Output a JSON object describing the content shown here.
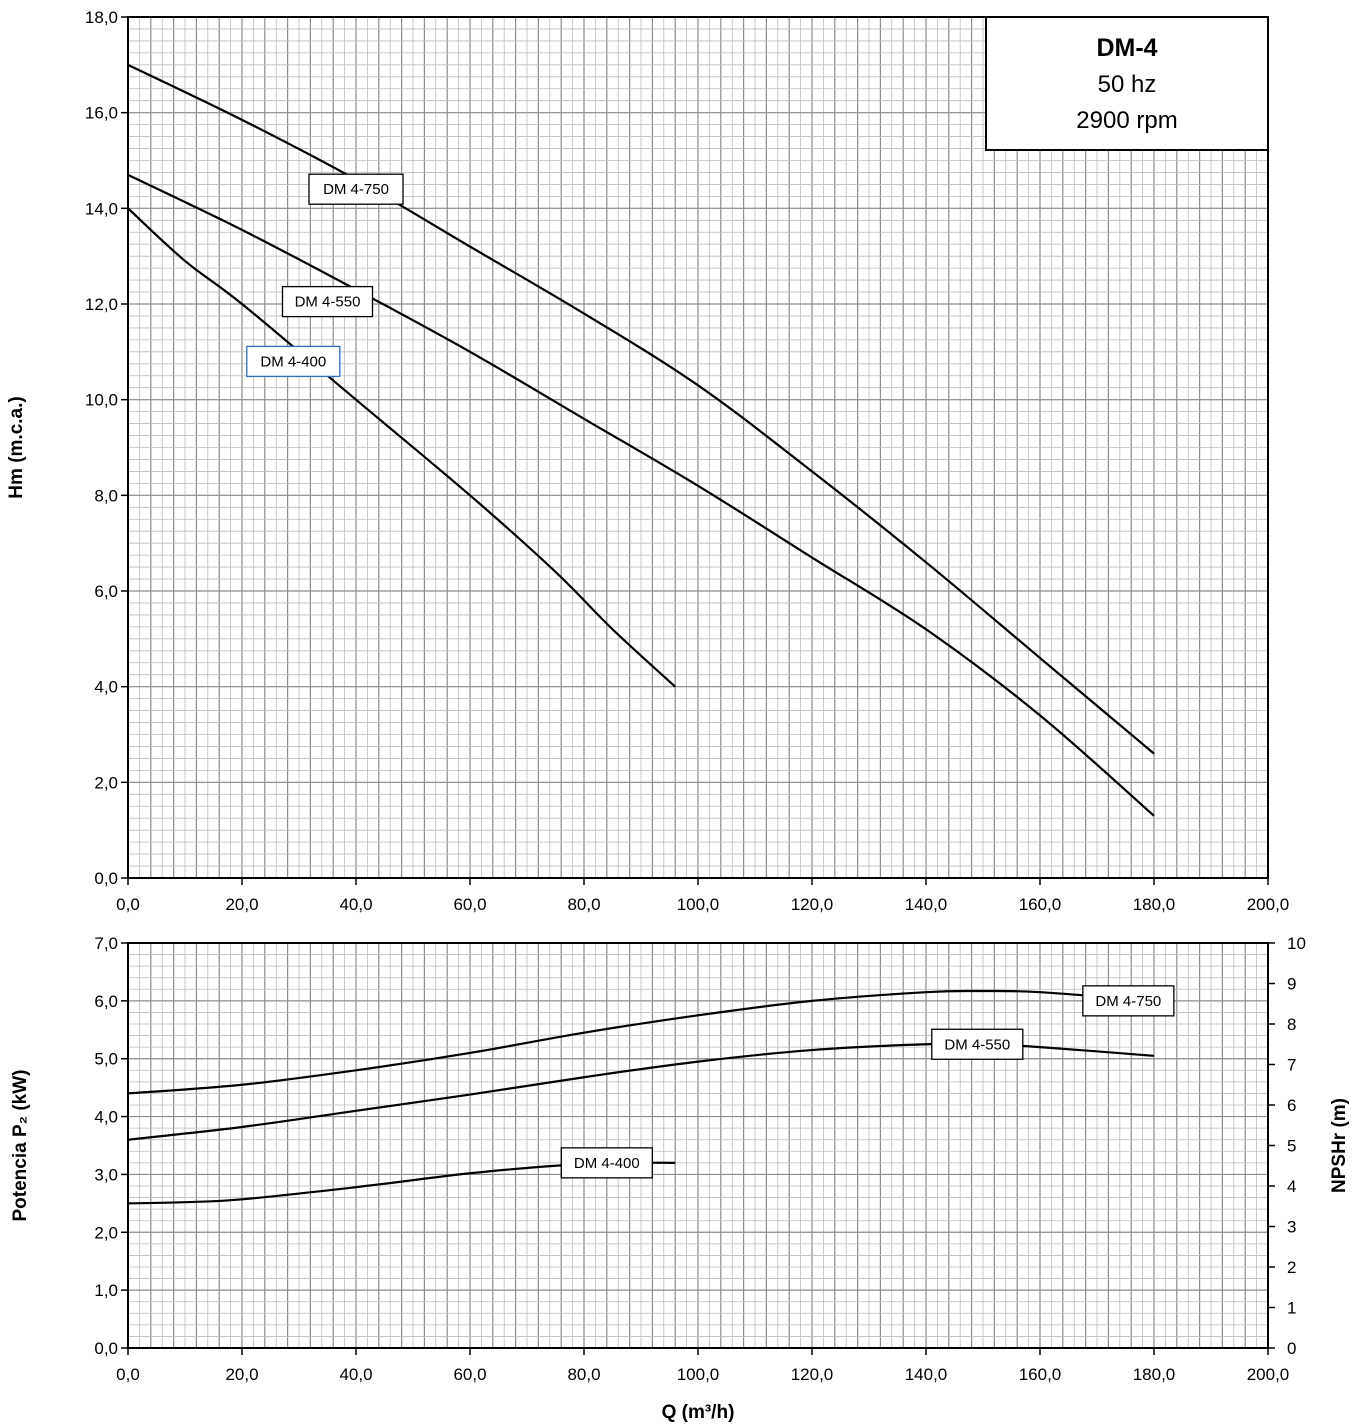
{
  "chart_data": [
    {
      "type": "line",
      "ylabel": "Hm (m.c.a.)",
      "xlabel": "",
      "xlim": [
        0,
        200
      ],
      "ylim": [
        0,
        18
      ],
      "grid": true,
      "x_ticks": [
        "0,0",
        "20,0",
        "40,0",
        "60,0",
        "80,0",
        "100,0",
        "120,0",
        "140,0",
        "160,0",
        "180,0",
        "200,0"
      ],
      "y_ticks": [
        "0,0",
        "2,0",
        "4,0",
        "6,0",
        "8,0",
        "10,0",
        "12,0",
        "14,0",
        "16,0",
        "18,0"
      ],
      "info_box": {
        "title": "DM-4",
        "line1": "50 hz",
        "line2": "2900 rpm"
      },
      "series": [
        {
          "name": "DM 4-750",
          "x": [
            0,
            20,
            40,
            60,
            80,
            100,
            120,
            140,
            160,
            180
          ],
          "y": [
            17.0,
            15.85,
            14.6,
            13.2,
            11.8,
            10.3,
            8.5,
            6.6,
            4.6,
            2.6
          ]
        },
        {
          "name": "DM 4-550",
          "x": [
            0,
            20,
            40,
            60,
            80,
            100,
            120,
            140,
            160,
            180
          ],
          "y": [
            14.7,
            13.55,
            12.3,
            11.0,
            9.6,
            8.2,
            6.7,
            5.2,
            3.4,
            1.3
          ]
        },
        {
          "name": "DM 4-400",
          "x": [
            0,
            10,
            20,
            40,
            60,
            75,
            85,
            96
          ],
          "y": [
            14.0,
            12.9,
            12.0,
            10.0,
            8.0,
            6.4,
            5.2,
            4.0
          ]
        }
      ]
    },
    {
      "type": "line",
      "xlabel": "Q (m³/h)",
      "ylabel": "Potencia P₂ (kW)",
      "ylabel_right": "NPSHr (m)",
      "xlim": [
        0,
        200
      ],
      "ylim": [
        0,
        7
      ],
      "ylim_right": [
        0,
        10
      ],
      "grid": true,
      "x_ticks": [
        "0,0",
        "20,0",
        "40,0",
        "60,0",
        "80,0",
        "100,0",
        "120,0",
        "140,0",
        "160,0",
        "180,0",
        "200,0"
      ],
      "y_ticks": [
        "0,0",
        "1,0",
        "2,0",
        "3,0",
        "4,0",
        "5,0",
        "6,0",
        "7,0"
      ],
      "y_ticks_right": [
        "0",
        "1",
        "2",
        "3",
        "4",
        "5",
        "6",
        "7",
        "8",
        "9",
        "10"
      ],
      "series": [
        {
          "name": "DM 4-750",
          "x": [
            0,
            20,
            40,
            60,
            80,
            100,
            120,
            140,
            150,
            160,
            180
          ],
          "y": [
            4.4,
            4.55,
            4.8,
            5.1,
            5.45,
            5.75,
            6.0,
            6.15,
            6.17,
            6.15,
            6.0
          ]
        },
        {
          "name": "DM 4-550",
          "x": [
            0,
            20,
            40,
            60,
            80,
            100,
            120,
            140,
            150,
            160,
            180
          ],
          "y": [
            3.6,
            3.82,
            4.1,
            4.38,
            4.68,
            4.95,
            5.15,
            5.25,
            5.25,
            5.2,
            5.05
          ]
        },
        {
          "name": "DM 4-400",
          "x": [
            0,
            10,
            20,
            40,
            60,
            75,
            85,
            96
          ],
          "y": [
            2.5,
            2.52,
            2.57,
            2.78,
            3.02,
            3.15,
            3.2,
            3.2
          ]
        }
      ]
    }
  ]
}
